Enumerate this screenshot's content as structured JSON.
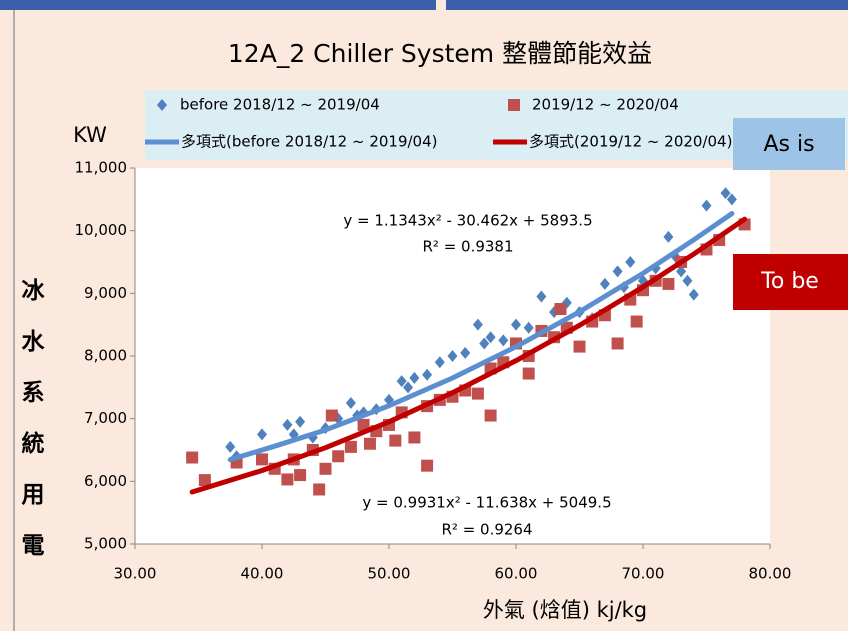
{
  "chart_data": {
    "type": "scatter",
    "title": "12A_2 Chiller System 整體節能效益",
    "y_unit": "KW",
    "y_label": "冰水系統用電",
    "x_label": "外氣 (焓值)  kj/kg",
    "xlim": [
      30,
      80
    ],
    "xticks": [
      {
        "value": 30,
        "label": "30.00"
      },
      {
        "value": 40,
        "label": "40.00"
      },
      {
        "value": 50,
        "label": "50.00"
      },
      {
        "value": 60,
        "label": "60.00"
      },
      {
        "value": 70,
        "label": "70.00"
      },
      {
        "value": 80,
        "label": "80.00"
      }
    ],
    "ylim": [
      5000,
      11000
    ],
    "yticks": [
      {
        "value": 5000,
        "label": "5,000"
      },
      {
        "value": 6000,
        "label": "6,000"
      },
      {
        "value": 7000,
        "label": "7,000"
      },
      {
        "value": 8000,
        "label": "8,000"
      },
      {
        "value": 9000,
        "label": "9,000"
      },
      {
        "value": 10000,
        "label": "10,000"
      },
      {
        "value": 11000,
        "label": "11,000"
      }
    ],
    "series": [
      {
        "name": "before 2018/12 ~ 2019/04",
        "color": "#4f81bd",
        "mode": "markers",
        "marker": "diamond",
        "x": [
          37.5,
          38,
          40,
          42,
          42.5,
          43,
          44,
          45,
          46,
          47,
          47.5,
          48,
          49,
          50,
          51,
          51.5,
          52,
          53,
          54,
          55,
          56,
          57,
          57.5,
          58,
          59,
          60,
          61,
          62,
          63,
          64,
          65,
          66,
          67,
          68,
          68.5,
          69,
          70,
          71,
          72,
          72.5,
          73,
          73.5,
          74,
          75,
          76.5,
          77
        ],
        "values": [
          6550,
          6400,
          6750,
          6900,
          6750,
          6950,
          6700,
          6850,
          7000,
          7250,
          7050,
          7100,
          7150,
          7300,
          7600,
          7500,
          7650,
          7700,
          7900,
          8000,
          8050,
          8500,
          8200,
          8300,
          8250,
          8500,
          8450,
          8950,
          8700,
          8850,
          8700,
          8600,
          9150,
          9350,
          9100,
          9500,
          9200,
          9400,
          9900,
          9600,
          9350,
          9200,
          8980,
          10400,
          10600,
          10500
        ]
      },
      {
        "name": "2019/12 ~ 2020/04",
        "color": "#c0504d",
        "mode": "markers",
        "marker": "square",
        "x": [
          34.5,
          35.5,
          38,
          40,
          41,
          42,
          42.5,
          43,
          44,
          44.5,
          45,
          45.5,
          46,
          47,
          48,
          48.5,
          49,
          50,
          50.5,
          51,
          52,
          53,
          53,
          54,
          55,
          56,
          57,
          58,
          58,
          59,
          60,
          61,
          61,
          62,
          63,
          63.5,
          64,
          65,
          66,
          67,
          68,
          69,
          69.5,
          70,
          71,
          72,
          73,
          75,
          76,
          78
        ],
        "values": [
          6380,
          6020,
          6300,
          6350,
          6200,
          6030,
          6350,
          6100,
          6500,
          5870,
          6200,
          7050,
          6400,
          6550,
          6900,
          6600,
          6800,
          6900,
          6650,
          7100,
          6700,
          6250,
          7200,
          7300,
          7350,
          7450,
          7400,
          7050,
          7800,
          7900,
          8200,
          8000,
          7720,
          8400,
          8300,
          8750,
          8450,
          8150,
          8550,
          8650,
          8200,
          8900,
          8550,
          9050,
          9200,
          9150,
          9500,
          9700,
          9850,
          10100
        ]
      },
      {
        "name": "多項式(before 2018/12 ~ 2019/04)",
        "color": "#5b8fd0",
        "mode": "lines",
        "x": [
          37.5,
          41,
          45,
          50,
          55,
          60,
          65,
          70,
          74,
          77
        ],
        "values": [
          6346,
          6561,
          6820,
          7206,
          7649,
          8149,
          8706,
          9319,
          9854,
          10273
        ]
      },
      {
        "name": "多項式(2019/12 ~ 2020/04)",
        "color": "#c00000",
        "mode": "lines",
        "x": [
          34.5,
          40,
          45,
          50,
          55,
          60,
          65,
          70,
          74,
          78
        ],
        "values": [
          5830,
          6173,
          6537,
          6950,
          7414,
          7926,
          8489,
          9101,
          9627,
          10184
        ]
      }
    ],
    "annotations": [
      "y = 1.1343x² - 30.462x + 5893.5",
      "R² = 0.9381",
      "y = 0.9931x² - 11.638x + 5049.5",
      "R² = 0.9264"
    ],
    "callouts": [
      "As is",
      "To be"
    ]
  }
}
